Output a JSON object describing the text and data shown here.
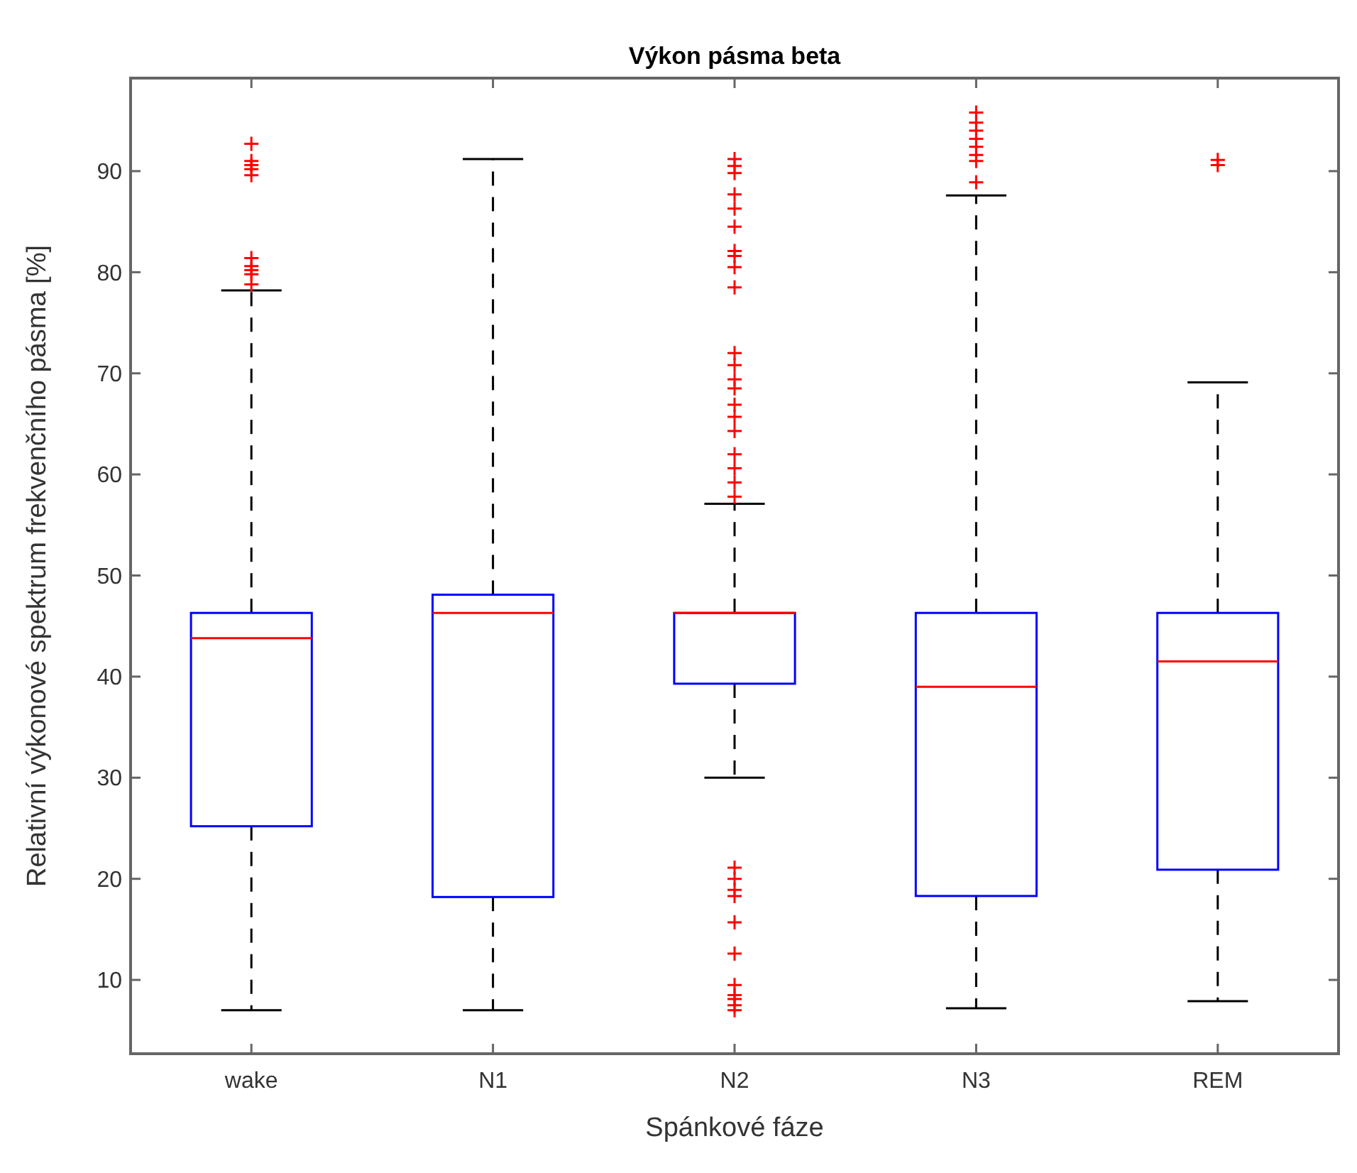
{
  "chart_data": {
    "type": "box",
    "title": "Výkon pásma beta",
    "xlabel": "Spánkové fáze",
    "ylabel": "Relativní výkonové spektrum frekvenčního pásma [%]",
    "categories": [
      "wake",
      "N1",
      "N2",
      "N3",
      "REM"
    ],
    "color": "#0000ff",
    "marker": "cross",
    "ylim": [
      2.7,
      99.2
    ],
    "yticks": [
      10,
      20,
      30,
      40,
      50,
      60,
      70,
      80,
      90
    ],
    "boxes": [
      {
        "low": 7,
        "q1": 25.2,
        "median": 43.8,
        "q3": 46.3,
        "high": 78.2,
        "outliers": [
          92.7,
          91,
          90.6,
          90.2,
          89.6,
          81.4,
          80.6,
          80.2,
          79.8,
          78.8
        ]
      },
      {
        "low": 7,
        "q1": 18.2,
        "median": 46.3,
        "q3": 48.1,
        "high": 91.2
      },
      {
        "low": 30,
        "q1": 39.3,
        "median": 46.3,
        "q3": 46.3,
        "high": 57.1,
        "outliers": [
          91.2,
          90.5,
          89.8,
          87.7,
          86.3,
          84.5,
          82.1,
          81.6,
          80.5,
          78.5,
          72,
          70.8,
          69.4,
          68.5,
          66.9,
          65.7,
          64.3,
          62,
          60.6,
          59.2,
          57.8,
          21.1,
          20,
          18.9,
          18.3,
          15.7,
          12.6,
          9.5,
          8.5,
          8.1,
          7.5,
          7
        ]
      },
      {
        "low": 7.2,
        "q1": 18.3,
        "median": 39,
        "q3": 46.3,
        "high": 87.6,
        "outliers": [
          95.8,
          94.8,
          94,
          93.2,
          92.4,
          91.6,
          91,
          88.9
        ]
      },
      {
        "low": 7.9,
        "q1": 20.9,
        "median": 41.5,
        "q3": 46.3,
        "high": 69.1,
        "outliers": [
          91.1,
          90.6
        ]
      }
    ]
  }
}
